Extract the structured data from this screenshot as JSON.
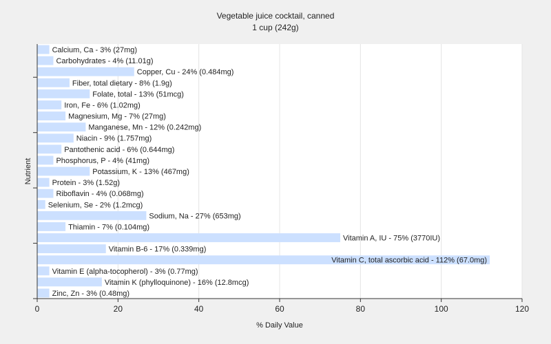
{
  "chart_data": {
    "type": "bar",
    "orientation": "horizontal",
    "title": "Vegetable juice cocktail, canned",
    "subtitle": "1 cup (242g)",
    "xlabel": "% Daily Value",
    "ylabel": "Nutrient",
    "xlim": [
      0,
      120
    ],
    "xticks": [
      0,
      20,
      40,
      60,
      80,
      100,
      120
    ],
    "grid": true,
    "bar_color": "#cce0ff",
    "bars": [
      {
        "value": 3,
        "label": "Calcium, Ca - 3% (27mg)"
      },
      {
        "value": 4,
        "label": "Carbohydrates - 4% (11.01g)"
      },
      {
        "value": 24,
        "label": "Copper, Cu - 24% (0.484mg)"
      },
      {
        "value": 8,
        "label": "Fiber, total dietary - 8% (1.9g)"
      },
      {
        "value": 13,
        "label": "Folate, total - 13% (51mcg)"
      },
      {
        "value": 6,
        "label": "Iron, Fe - 6% (1.02mg)"
      },
      {
        "value": 7,
        "label": "Magnesium, Mg - 7% (27mg)"
      },
      {
        "value": 12,
        "label": "Manganese, Mn - 12% (0.242mg)"
      },
      {
        "value": 9,
        "label": "Niacin - 9% (1.757mg)"
      },
      {
        "value": 6,
        "label": "Pantothenic acid - 6% (0.644mg)"
      },
      {
        "value": 4,
        "label": "Phosphorus, P - 4% (41mg)"
      },
      {
        "value": 13,
        "label": "Potassium, K - 13% (467mg)"
      },
      {
        "value": 3,
        "label": "Protein - 3% (1.52g)"
      },
      {
        "value": 4,
        "label": "Riboflavin - 4% (0.068mg)"
      },
      {
        "value": 2,
        "label": "Selenium, Se - 2% (1.2mcg)"
      },
      {
        "value": 27,
        "label": "Sodium, Na - 27% (653mg)"
      },
      {
        "value": 7,
        "label": "Thiamin - 7% (0.104mg)"
      },
      {
        "value": 75,
        "label": "Vitamin A, IU - 75% (3770IU)"
      },
      {
        "value": 17,
        "label": "Vitamin B-6 - 17% (0.339mg)"
      },
      {
        "value": 112,
        "label": "Vitamin C, total ascorbic acid - 112% (67.0mg)"
      },
      {
        "value": 3,
        "label": "Vitamin E (alpha-tocopherol) - 3% (0.77mg)"
      },
      {
        "value": 16,
        "label": "Vitamin K (phylloquinone) - 16% (12.8mcg)"
      },
      {
        "value": 3,
        "label": "Zinc, Zn - 3% (0.48mg)"
      }
    ]
  }
}
